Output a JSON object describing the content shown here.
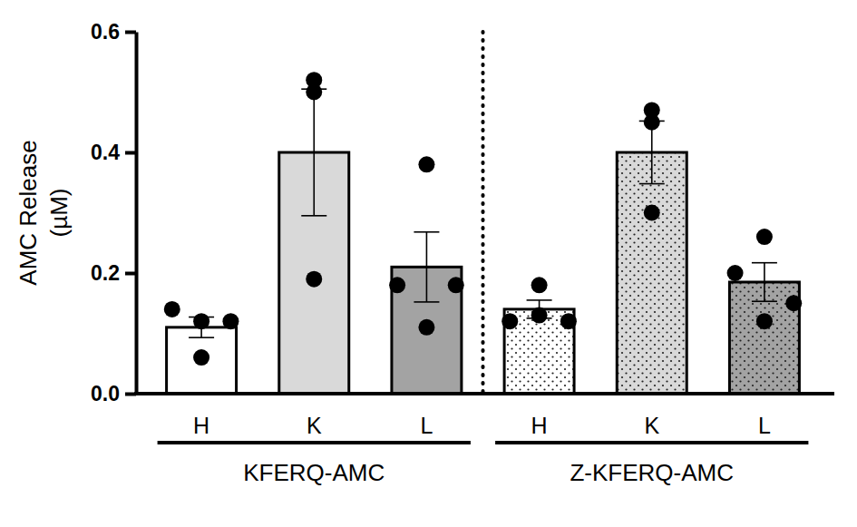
{
  "chart_data": {
    "type": "bar",
    "y_label": [
      "AMC Release",
      "(µM)"
    ],
    "categories": [
      "H",
      "K",
      "L"
    ],
    "ylim": [
      0,
      0.6
    ],
    "yticks": [
      {
        "value": 0,
        "label": "0.0"
      },
      0.2,
      0.4,
      0.6
    ],
    "series": [
      {
        "name": "KFERQ-AMC",
        "colors": [
          "#ffffff",
          "#d9d9d9",
          "#a3a3a3"
        ],
        "values": [
          0.11,
          0.4,
          0.21
        ],
        "errors": [
          0.017,
          0.105,
          0.058
        ],
        "points": [
          [
            0.14,
            0.12,
            0.12,
            0.06
          ],
          [
            0.52,
            0.5,
            0.19
          ],
          [
            0.18,
            0.38,
            0.18,
            0.11
          ]
        ]
      },
      {
        "name": "Z-KFERQ-AMC",
        "colors": [
          "#ffffff",
          "#d9d9d9",
          "#a3a3a3"
        ],
        "values": [
          0.14,
          0.4,
          0.185
        ],
        "errors": [
          0.015,
          0.052,
          0.032
        ],
        "points": [
          [
            0.12,
            0.18,
            0.12,
            0.13
          ],
          [
            0.47,
            0.45,
            0.3
          ],
          [
            0.2,
            0.26,
            0.15,
            0.12
          ]
        ]
      }
    ]
  }
}
